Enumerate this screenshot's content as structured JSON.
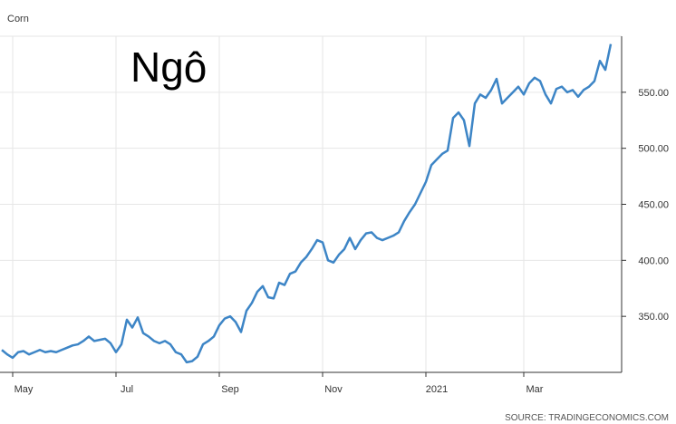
{
  "chart_data": {
    "type": "line",
    "label": "Corn",
    "title": "Ngô",
    "source": "SOURCE: TRADINGECONOMICS.COM",
    "categories": [
      null,
      null,
      "May",
      null,
      null,
      null,
      null,
      null,
      null,
      null,
      null,
      null,
      null,
      null,
      null,
      null,
      null,
      null,
      null,
      null,
      null,
      "Jul",
      null,
      null,
      null,
      null,
      null,
      null,
      null,
      null,
      null,
      null,
      null,
      null,
      null,
      null,
      null,
      null,
      null,
      null,
      "Sep",
      null,
      null,
      null,
      null,
      null,
      null,
      null,
      null,
      null,
      null,
      null,
      null,
      null,
      null,
      null,
      null,
      null,
      null,
      "Nov",
      null,
      null,
      null,
      null,
      null,
      null,
      null,
      null,
      null,
      null,
      null,
      null,
      null,
      null,
      null,
      null,
      null,
      null,
      "2021",
      null,
      null,
      null,
      null,
      null,
      null,
      null,
      null,
      null,
      null,
      null,
      null,
      null,
      null,
      null,
      null,
      null,
      "Mar",
      null,
      null,
      null,
      null,
      null,
      null,
      null,
      null,
      null,
      null,
      null,
      null,
      null,
      null,
      null,
      null
    ],
    "values": [
      320,
      316,
      313,
      318,
      319,
      316,
      318,
      320,
      318,
      319,
      318,
      320,
      322,
      324,
      325,
      328,
      332,
      328,
      329,
      330,
      326,
      318,
      325,
      347,
      340,
      349,
      335,
      332,
      328,
      326,
      328,
      325,
      318,
      316,
      309,
      310,
      314,
      325,
      328,
      332,
      342,
      348,
      350,
      345,
      336,
      355,
      362,
      372,
      377,
      367,
      366,
      380,
      378,
      388,
      390,
      398,
      403,
      410,
      418,
      416,
      400,
      398,
      405,
      410,
      420,
      410,
      418,
      424,
      425,
      420,
      418,
      420,
      422,
      425,
      435,
      443,
      450,
      460,
      470,
      485,
      490,
      495,
      498,
      527,
      532,
      525,
      502,
      540,
      548,
      545,
      552,
      562,
      540,
      545,
      550,
      555,
      548,
      558,
      563,
      560,
      548,
      540,
      553,
      555,
      550,
      552,
      546,
      552,
      555,
      560,
      578,
      570,
      593
    ],
    "color": "#3d85c6",
    "ylim": [
      300,
      600
    ],
    "yticks": [
      {
        "value": 350,
        "label": "350.00"
      },
      {
        "value": 400,
        "label": "400.00"
      },
      {
        "value": 450,
        "label": "450.00"
      },
      {
        "value": 500,
        "label": "500.00"
      },
      {
        "value": 550,
        "label": "550.00"
      }
    ],
    "grid": true
  }
}
